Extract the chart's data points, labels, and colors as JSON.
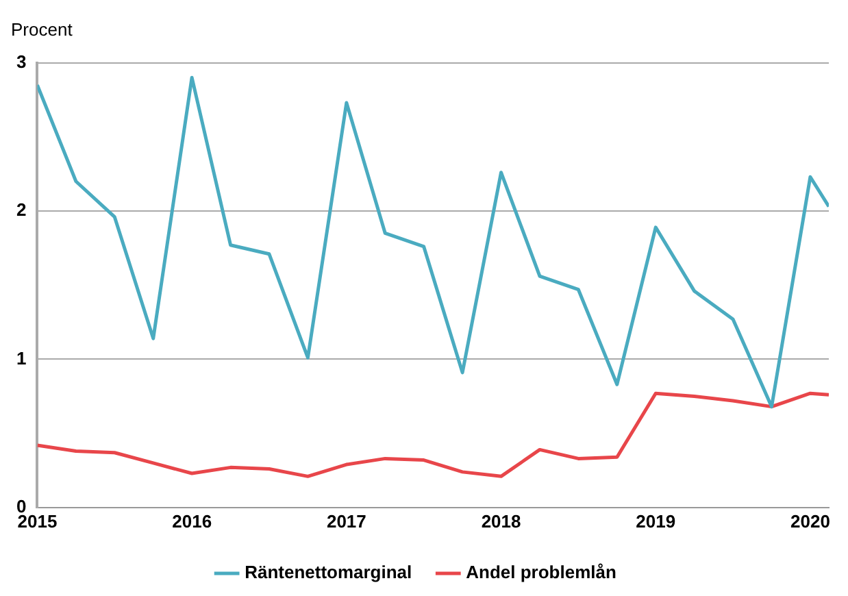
{
  "chart_data": {
    "type": "line",
    "ylabel": "Procent",
    "x": [
      2015,
      2015.25,
      2015.5,
      2015.75,
      2016,
      2016.25,
      2016.5,
      2016.75,
      2017,
      2017.25,
      2017.5,
      2017.75,
      2018,
      2018.25,
      2018.5,
      2018.75,
      2019,
      2019.25,
      2019.5,
      2019.75,
      2020,
      2020.12
    ],
    "series": [
      {
        "name": "Räntenettomarginal",
        "color": "#4aabc0",
        "values": [
          2.85,
          2.2,
          1.96,
          1.14,
          2.9,
          1.77,
          1.71,
          1.01,
          2.73,
          1.85,
          1.76,
          0.91,
          2.26,
          1.56,
          1.47,
          0.83,
          1.89,
          1.46,
          1.27,
          0.68,
          2.23,
          2.03
        ]
      },
      {
        "name": "Andel problemlån",
        "color": "#e8464a",
        "values": [
          0.42,
          0.38,
          0.37,
          0.3,
          0.23,
          0.27,
          0.26,
          0.21,
          0.29,
          0.33,
          0.32,
          0.24,
          0.21,
          0.39,
          0.33,
          0.34,
          0.77,
          0.75,
          0.72,
          0.68,
          0.77,
          0.76
        ]
      }
    ],
    "xlim": [
      2015,
      2020.12
    ],
    "xticks": [
      2015,
      2016,
      2017,
      2018,
      2019,
      2020
    ],
    "ylim": [
      0,
      3
    ],
    "yticks": [
      0,
      1,
      2,
      3
    ],
    "grid": "y",
    "legend": "bottom",
    "marker": "none",
    "line_style": "solid"
  }
}
